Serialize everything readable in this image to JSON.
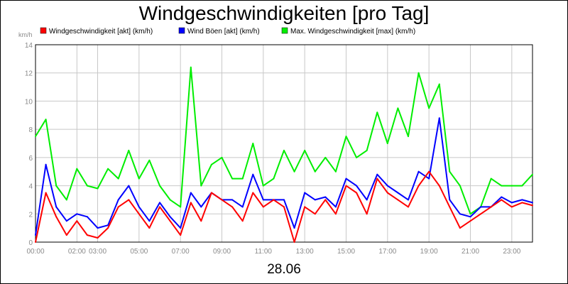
{
  "chart_data": {
    "type": "line",
    "title": "Windgeschwindigkeiten [pro Tag]",
    "xlabel": "28.06",
    "ylabel": "km/h",
    "ylim": [
      0,
      14
    ],
    "yticks": [
      "0",
      "2",
      "4",
      "6",
      "8",
      "10",
      "12",
      "14"
    ],
    "xlim": [
      "00:00",
      "24:00"
    ],
    "xticks": [
      "00:00",
      "02:00",
      "03:00",
      "05:00",
      "07:00",
      "09:00",
      "11:00",
      "13:00",
      "15:00",
      "17:00",
      "19:00",
      "21:00",
      "23:00"
    ],
    "grid": true,
    "legend_position": "top",
    "x": [
      "00:00",
      "00:30",
      "01:00",
      "01:30",
      "02:00",
      "02:30",
      "03:00",
      "03:30",
      "04:00",
      "04:30",
      "05:00",
      "05:30",
      "06:00",
      "06:30",
      "07:00",
      "07:30",
      "08:00",
      "08:30",
      "09:00",
      "09:30",
      "10:00",
      "10:30",
      "11:00",
      "11:30",
      "12:00",
      "12:30",
      "13:00",
      "13:30",
      "14:00",
      "14:30",
      "15:00",
      "15:30",
      "16:00",
      "16:30",
      "17:00",
      "17:30",
      "18:00",
      "18:30",
      "19:00",
      "19:30",
      "20:00",
      "20:30",
      "21:00",
      "21:30",
      "22:00",
      "22:30",
      "23:00",
      "23:30",
      "24:00"
    ],
    "series": [
      {
        "name": "Windgeschwindigkeit [akt] (km/h)",
        "color": "#ff0000",
        "values": [
          0.0,
          3.5,
          1.8,
          0.5,
          1.5,
          0.5,
          0.3,
          1.0,
          2.5,
          3.0,
          2.0,
          1.0,
          2.5,
          1.5,
          0.5,
          2.8,
          1.5,
          3.5,
          3.0,
          2.5,
          1.5,
          3.5,
          2.5,
          3.0,
          2.5,
          0.0,
          2.5,
          2.0,
          3.0,
          2.0,
          4.0,
          3.5,
          2.0,
          4.5,
          3.5,
          3.0,
          2.5,
          4.0,
          5.0,
          4.0,
          2.5,
          1.0,
          1.5,
          2.0,
          2.5,
          3.0,
          2.5,
          2.8,
          2.6
        ]
      },
      {
        "name": "Wind Böen [akt] (km/h)",
        "color": "#0000ff",
        "values": [
          0.5,
          5.5,
          2.5,
          1.5,
          2.0,
          1.8,
          1.0,
          1.2,
          3.0,
          4.0,
          2.5,
          1.5,
          2.8,
          1.8,
          1.0,
          3.5,
          2.5,
          3.5,
          3.0,
          3.0,
          2.5,
          4.8,
          3.0,
          3.0,
          3.0,
          1.0,
          3.5,
          3.0,
          3.2,
          2.5,
          4.5,
          4.0,
          3.0,
          4.8,
          4.0,
          3.5,
          3.0,
          5.0,
          4.5,
          8.8,
          3.0,
          2.0,
          1.8,
          2.5,
          2.5,
          3.2,
          2.8,
          3.0,
          2.8
        ]
      },
      {
        "name": "Max. Windgeschwindigkeit [max] (km/h)",
        "color": "#00ee00",
        "values": [
          7.5,
          8.7,
          4.0,
          3.0,
          5.2,
          4.0,
          3.8,
          5.2,
          4.5,
          6.5,
          4.5,
          5.8,
          4.0,
          3.0,
          2.5,
          12.4,
          4.0,
          5.5,
          6.0,
          4.5,
          4.5,
          7.0,
          4.0,
          4.5,
          6.5,
          5.0,
          6.5,
          5.0,
          6.0,
          5.0,
          7.5,
          6.0,
          6.5,
          9.2,
          7.0,
          9.5,
          7.5,
          12.0,
          9.5,
          11.2,
          5.0,
          4.0,
          2.0,
          2.5,
          4.5,
          4.0,
          4.0,
          4.0,
          4.8
        ]
      }
    ]
  }
}
